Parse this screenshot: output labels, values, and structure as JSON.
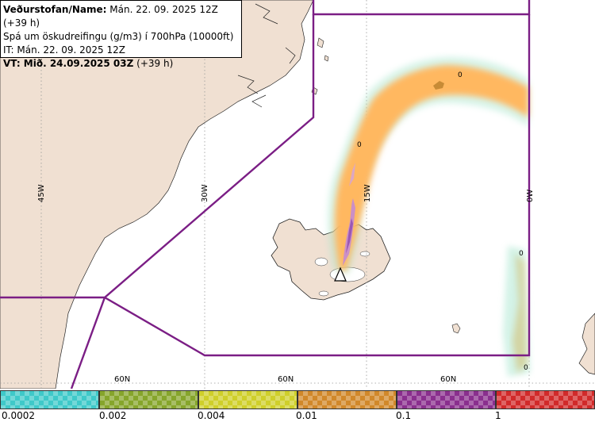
{
  "infobox": {
    "line1_label": "Veðurstofan/Name:",
    "line1_value": " Mán. 22. 09. 2025 12Z (+39 h)",
    "line2": "Spá um öskudreifingu (g/m3) í 700hPa (10000ft)",
    "line3": "IT: Mán. 22. 09. 2025 12Z",
    "line4_label": "VT: Mið. 24.09.2025 03Z",
    "line4_value": " (+39 h)"
  },
  "map": {
    "colors": {
      "land": "#f0e0d2",
      "sea": "#ffffff",
      "fir_boundary": "#7b1e85",
      "grid": "#999999"
    },
    "meridian_labels": [
      "45W",
      "30W",
      "15W",
      "0W"
    ],
    "parallel_labels": [
      "60N",
      "60N",
      "60N"
    ],
    "contour_labels": [
      "0",
      "0",
      "0",
      "0"
    ]
  },
  "legend": {
    "colors": [
      "#3fc9c9",
      "#86a52b",
      "#cfcf2a",
      "#d1882a",
      "#8a2f8e",
      "#d12a2a"
    ],
    "tick_labels": [
      "0.0002",
      "0.002",
      "0.004",
      "0.01",
      "0.1",
      "1"
    ]
  }
}
